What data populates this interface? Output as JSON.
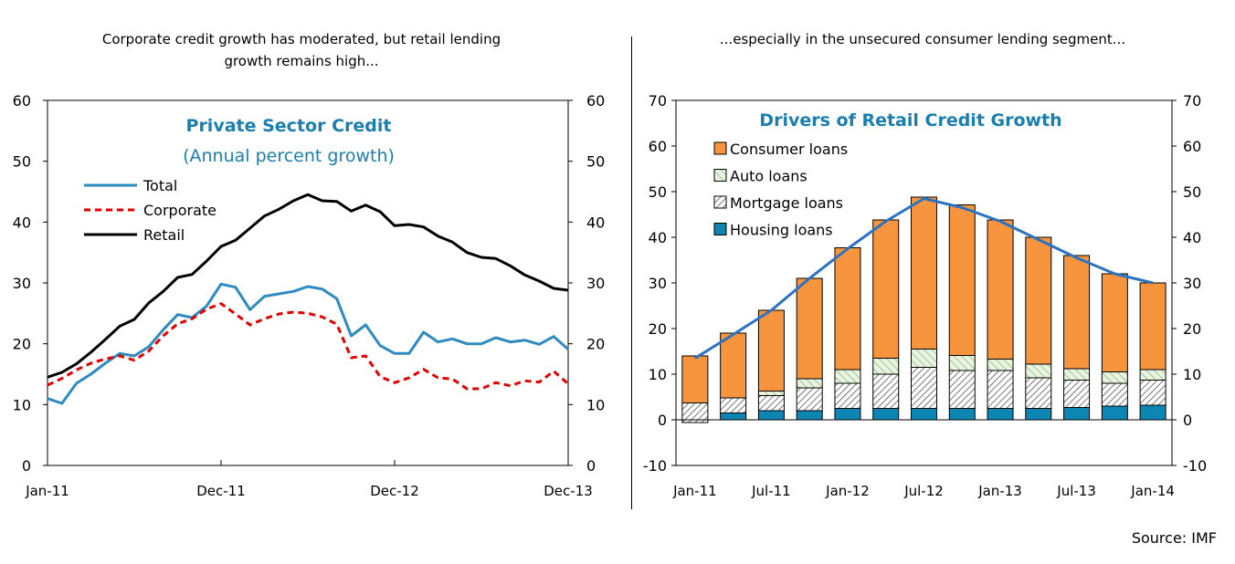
{
  "left_caption": "Corporate credit growth has moderated, but retail lending growth remains high...",
  "right_caption": "...especially in the unsecured consumer lending segment...",
  "source": "Source: IMF",
  "colors": {
    "total": "#2e8bbf",
    "corporate": "#e00000",
    "retail": "#000000",
    "title_blue": "#1a7fae",
    "consumer": "#f7953f",
    "housing": "#0e86b4",
    "trend_line": "#2b73c1"
  },
  "chart_data": [
    {
      "type": "line",
      "title": "Private Sector Credit",
      "subtitle": "(Annual percent growth)",
      "ylim": [
        0,
        60
      ],
      "yticks": [
        0,
        10,
        20,
        30,
        40,
        50,
        60
      ],
      "xticks": [
        "Jan-11",
        "Dec-11",
        "Dec-12",
        "Dec-13"
      ],
      "legend": [
        "Total",
        "Corporate",
        "Retail"
      ],
      "series": [
        {
          "name": "Total",
          "values": [
            11,
            10.2,
            13.5,
            15,
            16.8,
            18.4,
            18,
            19.5,
            22.3,
            24.8,
            24.3,
            26.2,
            29.8,
            29.3,
            25.6,
            27.8,
            28.2,
            28.6,
            29.4,
            29,
            27.4,
            21.3,
            23.1,
            19.7,
            18.4,
            18.4,
            21.9,
            20.3,
            20.8,
            20,
            20,
            21,
            20.3,
            20.6,
            19.9,
            21.2,
            19.1
          ]
        },
        {
          "name": "Corporate",
          "values": [
            13.2,
            14.3,
            15.7,
            16.8,
            17.5,
            18,
            17.3,
            18.8,
            21.3,
            23.3,
            24.1,
            25.7,
            26.6,
            24.9,
            23.1,
            24.1,
            24.9,
            25.2,
            25,
            24.4,
            23.2,
            17.7,
            18,
            14.6,
            13.6,
            14.4,
            15.8,
            14.4,
            14.2,
            12.6,
            12.6,
            13.6,
            13.1,
            13.9,
            13.7,
            15.5,
            13.4
          ]
        },
        {
          "name": "Retail",
          "values": [
            14.5,
            15.3,
            16.7,
            18.6,
            20.7,
            22.9,
            24,
            26.7,
            28.6,
            30.9,
            31.4,
            33.6,
            36,
            37,
            39,
            41,
            42.1,
            43.5,
            44.5,
            43.5,
            43.4,
            41.8,
            42.8,
            41.7,
            39.4,
            39.6,
            39.2,
            37.7,
            36.7,
            35,
            34.2,
            34,
            32.8,
            31.3,
            30.3,
            29.1,
            28.8
          ]
        }
      ]
    },
    {
      "type": "bar",
      "stacked": true,
      "title": "Drivers of Retail Credit Growth",
      "ylim": [
        -10,
        70
      ],
      "yticks": [
        -10,
        0,
        10,
        20,
        30,
        40,
        50,
        60,
        70
      ],
      "xticks": [
        "Jan-11",
        "Jul-11",
        "Jan-12",
        "Jul-12",
        "Jan-13",
        "Jul-13",
        "Jan-14"
      ],
      "legend": [
        "Consumer loans",
        "Auto loans",
        "Mortgage loans",
        "Housing loans"
      ],
      "series": [
        {
          "name": "Housing loans",
          "values": [
            0,
            1.5,
            2,
            2,
            2.5,
            2.5,
            2.5,
            2.5,
            2.5,
            2.5,
            2.7,
            3,
            3.2
          ]
        },
        {
          "name": "Mortgage loans",
          "values": [
            3.7,
            3.3,
            3.3,
            5,
            5.5,
            7.5,
            9,
            8.3,
            8.3,
            6.7,
            6,
            5,
            5.5
          ]
        },
        {
          "name": "Auto loans",
          "values": [
            0,
            0,
            1,
            2,
            3,
            3.5,
            4,
            3.3,
            2.5,
            3,
            2.5,
            2.5,
            2.3
          ]
        },
        {
          "name": "Consumer loans",
          "values": [
            10.3,
            14.2,
            17.7,
            22,
            26.7,
            30.3,
            33.3,
            33,
            30.5,
            27.8,
            24.8,
            21.5,
            19
          ]
        }
      ],
      "negatives": {
        "Mortgage loans": [
          -0.6,
          0,
          0,
          0,
          0,
          0,
          0,
          0,
          0,
          0,
          0,
          0,
          0
        ]
      },
      "line": {
        "name": "Retail credit growth",
        "values": [
          13.5,
          18.7,
          24,
          31,
          37.5,
          43.5,
          48.5,
          46.5,
          43.5,
          39.5,
          35.5,
          32,
          30
        ]
      }
    }
  ]
}
